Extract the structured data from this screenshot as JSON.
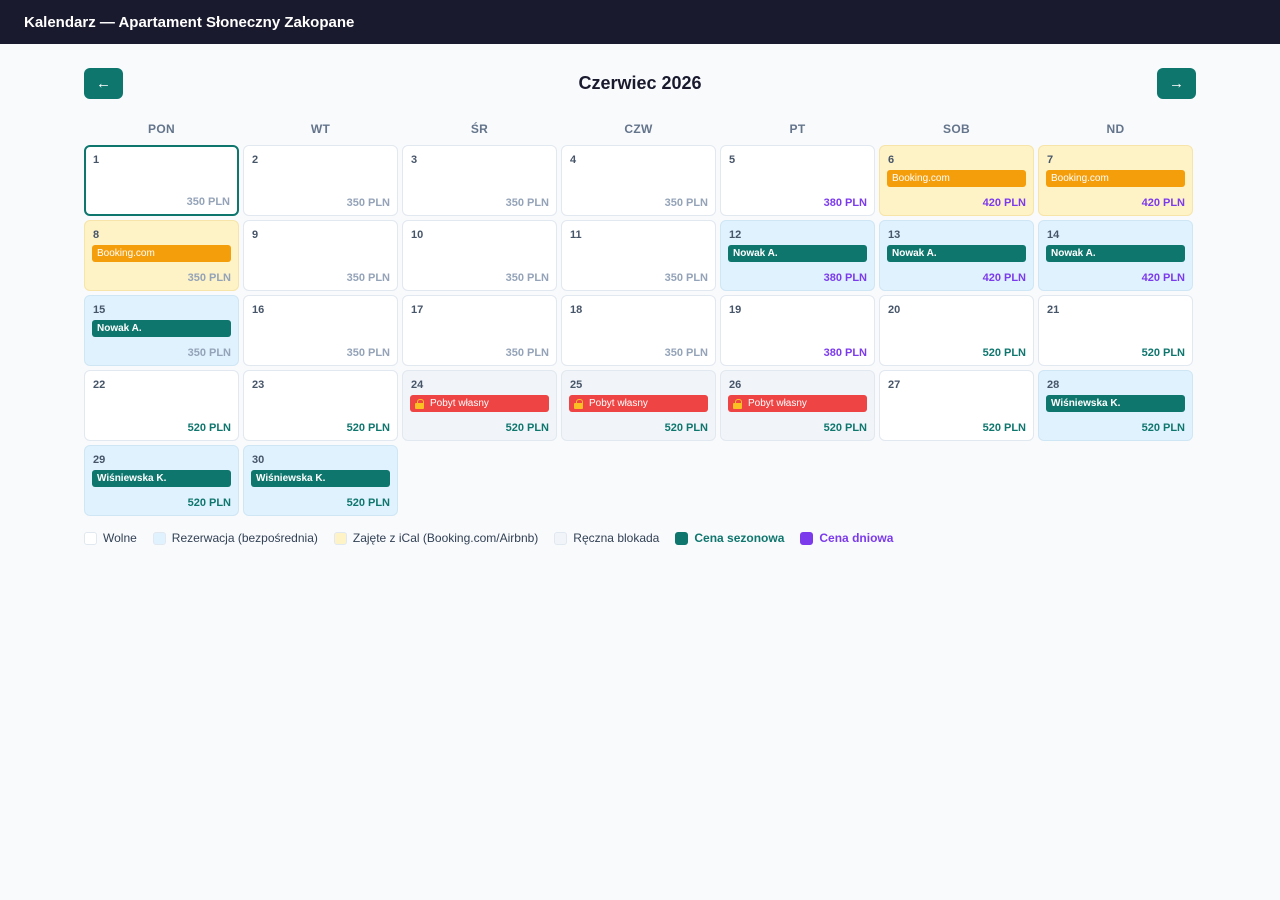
{
  "app": {
    "title": "Kalendarz — Apartament Słoneczny Zakopane"
  },
  "calendar": {
    "month_title": "Czerwiec 2026",
    "prev_label": "←",
    "next_label": "→",
    "weekdays": [
      "PON",
      "WT",
      "ŚR",
      "CZW",
      "PT",
      "SOB",
      "ND"
    ],
    "days": [
      {
        "day": "1",
        "price": "350 PLN",
        "price_type": "base",
        "state": "free",
        "today": true
      },
      {
        "day": "2",
        "price": "350 PLN",
        "price_type": "base",
        "state": "free"
      },
      {
        "day": "3",
        "price": "350 PLN",
        "price_type": "base",
        "state": "free"
      },
      {
        "day": "4",
        "price": "350 PLN",
        "price_type": "base",
        "state": "free"
      },
      {
        "day": "5",
        "price": "380 PLN",
        "price_type": "daily",
        "state": "free"
      },
      {
        "day": "6",
        "price": "420 PLN",
        "price_type": "daily",
        "state": "ical",
        "badge": "Booking.com"
      },
      {
        "day": "7",
        "price": "420 PLN",
        "price_type": "daily",
        "state": "ical",
        "badge": "Booking.com"
      },
      {
        "day": "8",
        "price": "350 PLN",
        "price_type": "base",
        "state": "ical",
        "badge": "Booking.com"
      },
      {
        "day": "9",
        "price": "350 PLN",
        "price_type": "base",
        "state": "free"
      },
      {
        "day": "10",
        "price": "350 PLN",
        "price_type": "base",
        "state": "free"
      },
      {
        "day": "11",
        "price": "350 PLN",
        "price_type": "base",
        "state": "free"
      },
      {
        "day": "12",
        "price": "380 PLN",
        "price_type": "daily",
        "state": "reservation",
        "badge": "Nowak A."
      },
      {
        "day": "13",
        "price": "420 PLN",
        "price_type": "daily",
        "state": "reservation",
        "badge": "Nowak A."
      },
      {
        "day": "14",
        "price": "420 PLN",
        "price_type": "daily",
        "state": "reservation",
        "badge": "Nowak A."
      },
      {
        "day": "15",
        "price": "350 PLN",
        "price_type": "base",
        "state": "reservation",
        "badge": "Nowak A."
      },
      {
        "day": "16",
        "price": "350 PLN",
        "price_type": "base",
        "state": "free"
      },
      {
        "day": "17",
        "price": "350 PLN",
        "price_type": "base",
        "state": "free"
      },
      {
        "day": "18",
        "price": "350 PLN",
        "price_type": "base",
        "state": "free"
      },
      {
        "day": "19",
        "price": "380 PLN",
        "price_type": "daily",
        "state": "free"
      },
      {
        "day": "20",
        "price": "520 PLN",
        "price_type": "seasonal",
        "state": "free"
      },
      {
        "day": "21",
        "price": "520 PLN",
        "price_type": "seasonal",
        "state": "free"
      },
      {
        "day": "22",
        "price": "520 PLN",
        "price_type": "seasonal",
        "state": "free"
      },
      {
        "day": "23",
        "price": "520 PLN",
        "price_type": "seasonal",
        "state": "free"
      },
      {
        "day": "24",
        "price": "520 PLN",
        "price_type": "seasonal",
        "state": "block",
        "badge": "Pobyt własny"
      },
      {
        "day": "25",
        "price": "520 PLN",
        "price_type": "seasonal",
        "state": "block",
        "badge": "Pobyt własny"
      },
      {
        "day": "26",
        "price": "520 PLN",
        "price_type": "seasonal",
        "state": "block",
        "badge": "Pobyt własny"
      },
      {
        "day": "27",
        "price": "520 PLN",
        "price_type": "seasonal",
        "state": "free"
      },
      {
        "day": "28",
        "price": "520 PLN",
        "price_type": "seasonal",
        "state": "reservation",
        "badge": "Wiśniewska K."
      },
      {
        "day": "29",
        "price": "520 PLN",
        "price_type": "seasonal",
        "state": "reservation",
        "badge": "Wiśniewska K."
      },
      {
        "day": "30",
        "price": "520 PLN",
        "price_type": "seasonal",
        "state": "reservation",
        "badge": "Wiśniewska K."
      }
    ]
  },
  "legend": [
    {
      "label": "Wolne",
      "color": "#ffffff",
      "bold": false
    },
    {
      "label": "Rezerwacja (bezpośrednia)",
      "color": "#e0f2fe",
      "bold": false
    },
    {
      "label": "Zajęte z iCal (Booking.com/Airbnb)",
      "color": "#fef3c7",
      "bold": false
    },
    {
      "label": "Ręczna blokada",
      "color": "#f1f5f9",
      "bold": false
    },
    {
      "label": "Cena sezonowa",
      "color": "#0f766e",
      "bold": true,
      "text_color": "#0f766e"
    },
    {
      "label": "Cena dniowa",
      "color": "#7c3aed",
      "bold": true,
      "text_color": "#7c3aed"
    }
  ]
}
